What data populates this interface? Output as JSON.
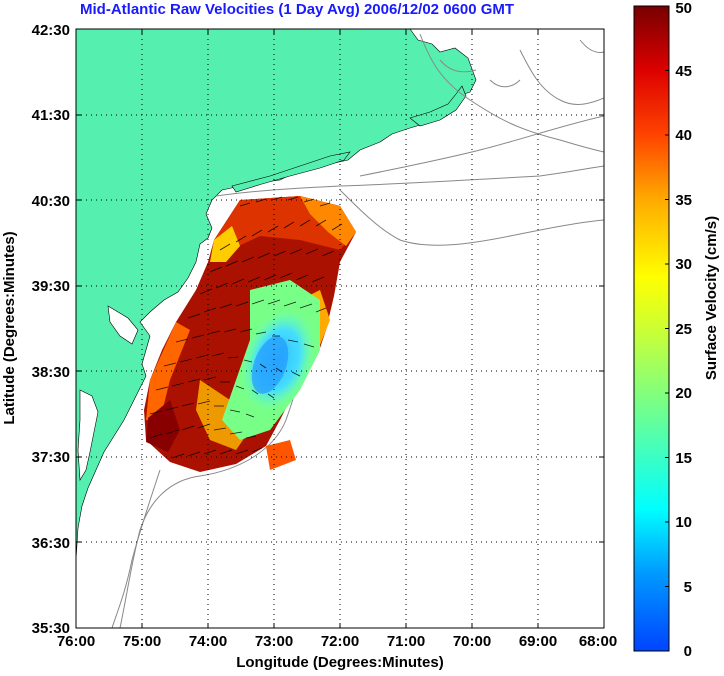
{
  "map": {
    "title": "Mid-Atlantic Raw Velocities (1 Day Avg) 2006/12/02 0600 GMT",
    "xlabel": "Longitude (Degrees:Minutes)",
    "ylabel": "Latitude (Degrees:Minutes)",
    "x_ticks": [
      "76:00",
      "75:00",
      "74:00",
      "73:00",
      "72:00",
      "71:00",
      "70:00",
      "69:00",
      "68:00"
    ],
    "y_ticks": [
      "42:30",
      "41:30",
      "40:30",
      "39:30",
      "38:30",
      "37:30",
      "36:30",
      "35:30"
    ],
    "colors": {
      "land": "#55f0b0",
      "title": "#1a1aff",
      "bathymetry": "#888888",
      "grid": "#000000"
    }
  },
  "colorbar": {
    "label": "Surface Velocity (cm/s)",
    "min": 0,
    "max": 50,
    "ticks": [
      "0",
      "5",
      "10",
      "15",
      "20",
      "25",
      "30",
      "35",
      "40",
      "45",
      "50"
    ],
    "colormap": "jet"
  }
}
